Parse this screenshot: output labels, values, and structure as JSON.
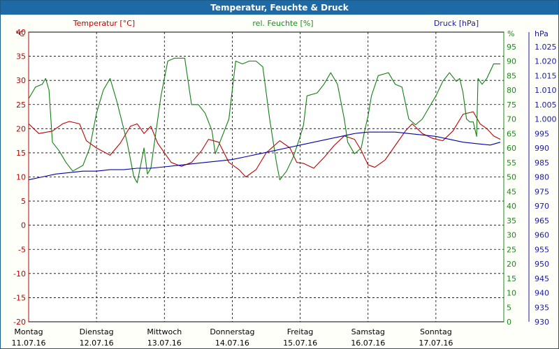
{
  "window": {
    "title": "Temperatur, Feuchte & Druck"
  },
  "colors": {
    "temperature": "#c00000",
    "humidity": "#128012",
    "pressure": "#0000b0",
    "titlebar": "#1e6aa6"
  },
  "chart_data": {
    "type": "line",
    "title": "Temperatur, Feuchte & Druck",
    "grid": true,
    "x_ticks": [
      {
        "day": "Montag",
        "date": "11.07.16"
      },
      {
        "day": "Dienstag",
        "date": "12.07.16"
      },
      {
        "day": "Mittwoch",
        "date": "13.07.16"
      },
      {
        "day": "Donnerstag",
        "date": "14.07.16"
      },
      {
        "day": "Freitag",
        "date": "15.07.16"
      },
      {
        "day": "Samstag",
        "date": "16.07.16"
      },
      {
        "day": "Sonntag",
        "date": "17.07.16"
      }
    ],
    "x_range_days": [
      0,
      7
    ],
    "axes": {
      "temperature": {
        "label": "Temperatur [°C]",
        "unit": "°C",
        "range": [
          -20,
          40
        ],
        "ticks": [
          "40",
          "35",
          "30",
          "25",
          "20",
          "15",
          "10",
          "5",
          "0",
          "-5",
          "-10",
          "-15",
          "-20"
        ]
      },
      "humidity": {
        "label": "rel. Feuchte [%]",
        "unit": "%",
        "range": [
          0,
          100
        ],
        "ticks": [
          "95",
          "90",
          "85",
          "80",
          "75",
          "70",
          "65",
          "60",
          "55",
          "50",
          "45",
          "40",
          "35",
          "30",
          "25",
          "20",
          "15",
          "10",
          "5",
          "0"
        ]
      },
      "pressure": {
        "label": "Druck [hPa]",
        "unit": "hPa",
        "range": [
          930,
          1030
        ],
        "ticks": [
          "1.025",
          "1.020",
          "1.015",
          "1.010",
          "1.005",
          "1.000",
          "995",
          "990",
          "985",
          "980",
          "975",
          "970",
          "965",
          "960",
          "955",
          "950",
          "945",
          "940",
          "935",
          "930"
        ]
      }
    },
    "series": [
      {
        "name": "Temperatur [°C]",
        "axis": "temperature",
        "points": [
          [
            0.0,
            21.0
          ],
          [
            0.15,
            19.0
          ],
          [
            0.35,
            19.5
          ],
          [
            0.5,
            21.0
          ],
          [
            0.6,
            21.5
          ],
          [
            0.75,
            21.0
          ],
          [
            0.85,
            17.5
          ],
          [
            1.0,
            16.0
          ],
          [
            1.2,
            14.5
          ],
          [
            1.35,
            17.0
          ],
          [
            1.5,
            20.5
          ],
          [
            1.6,
            21.0
          ],
          [
            1.7,
            19.0
          ],
          [
            1.8,
            20.5
          ],
          [
            1.9,
            17.0
          ],
          [
            2.1,
            13.0
          ],
          [
            2.25,
            12.2
          ],
          [
            2.4,
            13.0
          ],
          [
            2.55,
            15.5
          ],
          [
            2.65,
            17.8
          ],
          [
            2.8,
            17.2
          ],
          [
            2.95,
            13.0
          ],
          [
            3.1,
            11.5
          ],
          [
            3.2,
            10.0
          ],
          [
            3.35,
            11.5
          ],
          [
            3.5,
            15.0
          ],
          [
            3.7,
            17.5
          ],
          [
            3.85,
            16.0
          ],
          [
            3.95,
            13.0
          ],
          [
            4.05,
            12.8
          ],
          [
            4.2,
            11.8
          ],
          [
            4.35,
            14.0
          ],
          [
            4.5,
            16.5
          ],
          [
            4.65,
            18.5
          ],
          [
            4.8,
            17.8
          ],
          [
            4.9,
            15.5
          ],
          [
            5.0,
            12.5
          ],
          [
            5.1,
            12.0
          ],
          [
            5.25,
            13.5
          ],
          [
            5.4,
            16.5
          ],
          [
            5.55,
            19.5
          ],
          [
            5.65,
            21.0
          ],
          [
            5.8,
            19.0
          ],
          [
            5.95,
            18.0
          ],
          [
            6.1,
            17.5
          ],
          [
            6.25,
            19.5
          ],
          [
            6.4,
            23.0
          ],
          [
            6.55,
            23.5
          ],
          [
            6.65,
            21.0
          ],
          [
            6.75,
            20.0
          ],
          [
            6.85,
            18.5
          ],
          [
            6.95,
            17.8
          ]
        ]
      },
      {
        "name": "rel. Feuchte [%]",
        "axis": "humidity",
        "points": [
          [
            0.0,
            77
          ],
          [
            0.1,
            81
          ],
          [
            0.2,
            82
          ],
          [
            0.25,
            84
          ],
          [
            0.3,
            80
          ],
          [
            0.35,
            62
          ],
          [
            0.45,
            59
          ],
          [
            0.55,
            55
          ],
          [
            0.65,
            52
          ],
          [
            0.8,
            54
          ],
          [
            0.9,
            60
          ],
          [
            1.0,
            72
          ],
          [
            1.1,
            80
          ],
          [
            1.2,
            84
          ],
          [
            1.3,
            76
          ],
          [
            1.45,
            62
          ],
          [
            1.55,
            50
          ],
          [
            1.6,
            48
          ],
          [
            1.7,
            60
          ],
          [
            1.75,
            51
          ],
          [
            1.8,
            53
          ],
          [
            1.95,
            78
          ],
          [
            2.05,
            90
          ],
          [
            2.15,
            91
          ],
          [
            2.3,
            91
          ],
          [
            2.4,
            75
          ],
          [
            2.5,
            75
          ],
          [
            2.6,
            72
          ],
          [
            2.7,
            66
          ],
          [
            2.75,
            58
          ],
          [
            2.85,
            64
          ],
          [
            2.95,
            70
          ],
          [
            3.0,
            80
          ],
          [
            3.05,
            90
          ],
          [
            3.15,
            89
          ],
          [
            3.25,
            90
          ],
          [
            3.35,
            90
          ],
          [
            3.45,
            88
          ],
          [
            3.55,
            70
          ],
          [
            3.65,
            55
          ],
          [
            3.7,
            49
          ],
          [
            3.8,
            52
          ],
          [
            3.9,
            57
          ],
          [
            4.0,
            64
          ],
          [
            4.05,
            68
          ],
          [
            4.1,
            78
          ],
          [
            4.25,
            79
          ],
          [
            4.35,
            82
          ],
          [
            4.45,
            86
          ],
          [
            4.55,
            82
          ],
          [
            4.65,
            70
          ],
          [
            4.7,
            62
          ],
          [
            4.8,
            58
          ],
          [
            4.9,
            60
          ],
          [
            4.95,
            66
          ],
          [
            5.0,
            71
          ],
          [
            5.05,
            78
          ],
          [
            5.15,
            85
          ],
          [
            5.3,
            86
          ],
          [
            5.4,
            82
          ],
          [
            5.5,
            81
          ],
          [
            5.6,
            70
          ],
          [
            5.7,
            68
          ],
          [
            5.8,
            70
          ],
          [
            5.9,
            74
          ],
          [
            6.0,
            78
          ],
          [
            6.1,
            83
          ],
          [
            6.2,
            86
          ],
          [
            6.3,
            83
          ],
          [
            6.35,
            84
          ],
          [
            6.4,
            79
          ],
          [
            6.45,
            70
          ],
          [
            6.5,
            69
          ],
          [
            6.55,
            69
          ],
          [
            6.6,
            64
          ],
          [
            6.62,
            84
          ],
          [
            6.68,
            82
          ],
          [
            6.75,
            84
          ],
          [
            6.85,
            89
          ],
          [
            6.95,
            89
          ]
        ]
      },
      {
        "name": "Druck [hPa]",
        "axis": "pressure",
        "points": [
          [
            0.0,
            979.0
          ],
          [
            0.2,
            980.0
          ],
          [
            0.4,
            981.0
          ],
          [
            0.6,
            981.5
          ],
          [
            0.8,
            982.0
          ],
          [
            1.0,
            982.0
          ],
          [
            1.2,
            982.5
          ],
          [
            1.4,
            982.5
          ],
          [
            1.6,
            983.0
          ],
          [
            1.8,
            983.0
          ],
          [
            2.0,
            983.5
          ],
          [
            2.2,
            984.0
          ],
          [
            2.4,
            984.5
          ],
          [
            2.6,
            985.0
          ],
          [
            2.8,
            985.5
          ],
          [
            3.0,
            986.0
          ],
          [
            3.2,
            987.0
          ],
          [
            3.4,
            988.0
          ],
          [
            3.6,
            989.0
          ],
          [
            3.8,
            990.0
          ],
          [
            4.0,
            991.0
          ],
          [
            4.2,
            992.0
          ],
          [
            4.4,
            993.0
          ],
          [
            4.6,
            994.0
          ],
          [
            4.8,
            995.0
          ],
          [
            5.0,
            995.5
          ],
          [
            5.2,
            995.5
          ],
          [
            5.4,
            995.5
          ],
          [
            5.6,
            995.0
          ],
          [
            5.8,
            994.5
          ],
          [
            6.0,
            994.0
          ],
          [
            6.2,
            993.0
          ],
          [
            6.4,
            992.0
          ],
          [
            6.6,
            991.5
          ],
          [
            6.8,
            991.0
          ],
          [
            6.95,
            992.0
          ]
        ]
      }
    ]
  }
}
